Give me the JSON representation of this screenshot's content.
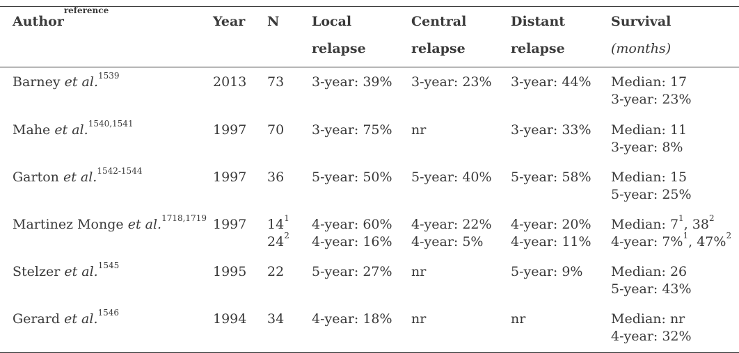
{
  "headers": {
    "author": "Author",
    "author_sup": "reference",
    "year": "Year",
    "n": "N",
    "local_1": "Local",
    "local_2": "relapse",
    "central_1": "Central",
    "central_2": "relapse",
    "distant_1": "Distant",
    "distant_2": "relapse",
    "survival_1": "Survival",
    "survival_2": "(months)"
  },
  "etal": "et al.",
  "rows": [
    {
      "author": "Barney",
      "ref": "1539",
      "year": "2013",
      "n": [
        "73"
      ],
      "n_sup": [
        ""
      ],
      "local": [
        "3-year: 39%"
      ],
      "central": [
        "3-year: 23%"
      ],
      "distant": [
        "3-year: 44%"
      ],
      "survival": [
        "Median: 17",
        "3-year: 23%"
      ]
    },
    {
      "author": "Mahe",
      "ref": "1540,1541",
      "year": "1997",
      "n": [
        "70"
      ],
      "n_sup": [
        ""
      ],
      "local": [
        "3-year: 75%"
      ],
      "central": [
        "nr"
      ],
      "distant": [
        "3-year: 33%"
      ],
      "survival": [
        "Median: 11",
        "3-year: 8%"
      ]
    },
    {
      "author": "Garton",
      "ref": "1542-1544",
      "year": "1997",
      "n": [
        "36"
      ],
      "n_sup": [
        ""
      ],
      "local": [
        "5-year: 50%"
      ],
      "central": [
        "5-year: 40%"
      ],
      "distant": [
        "5-year: 58%"
      ],
      "survival": [
        "Median: 15",
        "5-year: 25%"
      ]
    },
    {
      "author": "Martinez Monge",
      "ref": "1718,1719",
      "year": "1997",
      "n": [
        "14",
        "24"
      ],
      "n_sup": [
        "1",
        "2"
      ],
      "local": [
        "4-year: 60%",
        "4-year: 16%"
      ],
      "central": [
        "4-year: 22%",
        "4-year: 5%"
      ],
      "distant": [
        "4-year: 20%",
        "4-year: 11%"
      ],
      "survival_rich": [
        {
          "a": "Median: 7",
          "s1": "1",
          "b": ", 38",
          "s2": "2",
          "c": ""
        },
        {
          "a": "4-year: 7%",
          "s1": "1",
          "b": ", 47%",
          "s2": "2",
          "c": ""
        }
      ]
    },
    {
      "author": "Stelzer",
      "ref": "1545",
      "year": "1995",
      "n": [
        "22"
      ],
      "n_sup": [
        ""
      ],
      "local": [
        "5-year: 27%"
      ],
      "central": [
        "nr"
      ],
      "distant": [
        "5-year: 9%"
      ],
      "survival": [
        "Median: 26",
        "5-year: 43%"
      ]
    },
    {
      "author": "Gerard",
      "ref": "1546",
      "year": "1994",
      "n": [
        "34"
      ],
      "n_sup": [
        ""
      ],
      "local": [
        "4-year: 18%"
      ],
      "central": [
        "nr"
      ],
      "distant": [
        "nr"
      ],
      "survival": [
        "Median: nr",
        "4-year: 32%"
      ]
    }
  ]
}
